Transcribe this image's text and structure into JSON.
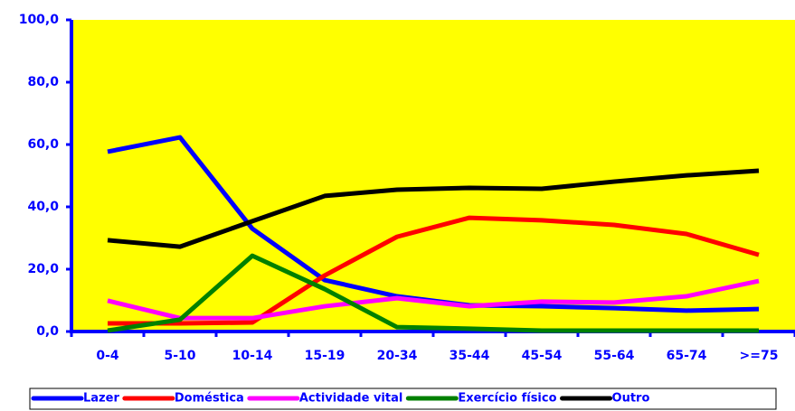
{
  "chart_data": {
    "type": "line",
    "categories": [
      "0-4",
      "5-10",
      "10-14",
      "15-19",
      "20-34",
      "35-44",
      "45-54",
      "55-64",
      "65-74",
      ">=75"
    ],
    "series": [
      {
        "name": "Lazer",
        "color": "#0000ff",
        "values": [
          57.7,
          62.3,
          33.0,
          16.5,
          11.3,
          8.4,
          8.1,
          7.5,
          6.7,
          7.2
        ]
      },
      {
        "name": "Doméstica",
        "color": "#ff0000",
        "values": [
          2.6,
          2.6,
          2.9,
          18.0,
          30.4,
          36.5,
          35.7,
          34.2,
          31.3,
          24.6
        ]
      },
      {
        "name": "Actividade vital",
        "color": "#ff00ff",
        "values": [
          9.9,
          4.3,
          4.3,
          8.1,
          10.7,
          8.1,
          9.6,
          9.3,
          11.3,
          16.2
        ]
      },
      {
        "name": "Exercício físico",
        "color": "#008000",
        "values": [
          0.3,
          3.8,
          24.3,
          13.6,
          1.4,
          0.9,
          0.3,
          0.3,
          0.3,
          0.3
        ]
      },
      {
        "name": "Outro",
        "color": "#000000",
        "values": [
          29.3,
          27.2,
          35.4,
          43.5,
          45.5,
          46.1,
          45.8,
          48.1,
          50.1,
          51.6
        ]
      }
    ],
    "ylim": [
      0,
      100
    ],
    "yticks": [
      {
        "value": 0,
        "label": "0,0"
      },
      {
        "value": 20,
        "label": "20,0"
      },
      {
        "value": 40,
        "label": "40,0"
      },
      {
        "value": 60,
        "label": "60,0"
      },
      {
        "value": 80,
        "label": "80,0"
      },
      {
        "value": 100,
        "label": "100,0"
      }
    ],
    "plot_background": "#ffff00",
    "axis_color": "#0000ff",
    "legend": "bottom"
  }
}
